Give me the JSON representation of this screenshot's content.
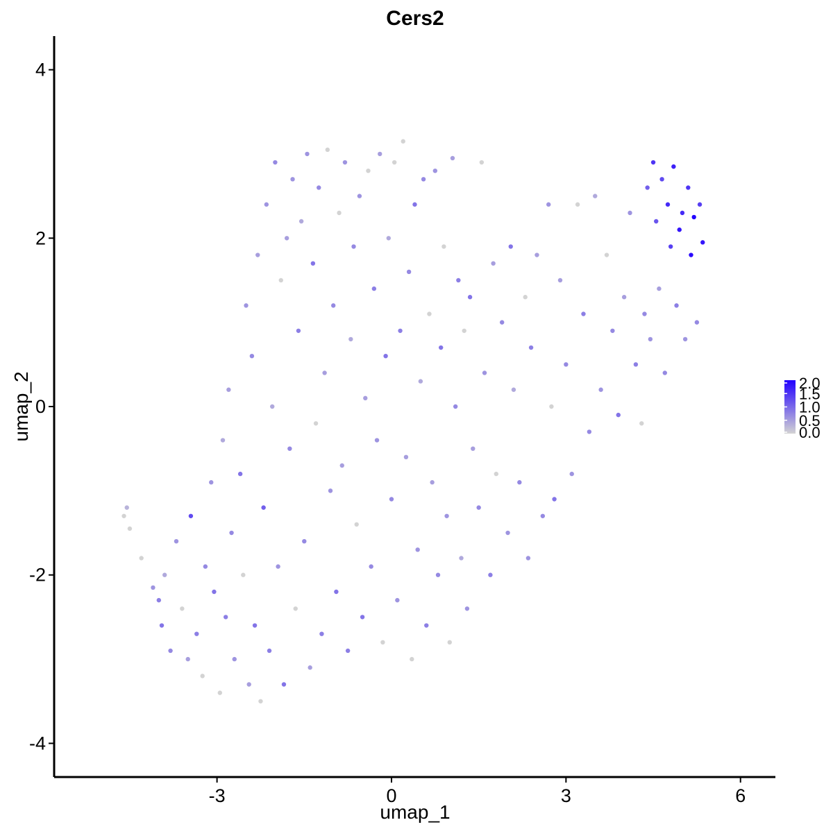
{
  "chart_data": {
    "type": "scatter",
    "title": "Cers2",
    "xlabel": "umap_1",
    "ylabel": "umap_2",
    "xlim": [
      -5.8,
      6.6
    ],
    "ylim": [
      -4.4,
      4.4
    ],
    "x_ticks": [
      -3,
      0,
      3,
      6
    ],
    "x_tick_labels": [
      "-3",
      "0",
      "3",
      "6"
    ],
    "y_ticks": [
      -4,
      -2,
      0,
      2,
      4
    ],
    "y_tick_labels": [
      "-4",
      "-2",
      "0",
      "2",
      "4"
    ],
    "grid": false,
    "legend_position": "right",
    "color_scale": {
      "low_color": "#d3d3d3",
      "high_color": "#2200ff",
      "min": 0.0,
      "max": 2.0,
      "breaks": [
        0.0,
        0.5,
        1.0,
        1.5,
        2.0
      ],
      "break_labels": [
        "0.0",
        "0.5",
        "1.0",
        "1.5",
        "2.0"
      ]
    },
    "points": [
      [
        -4.6,
        -1.3,
        0.0
      ],
      [
        -4.55,
        -1.2,
        0.3
      ],
      [
        -4.5,
        -1.45,
        0.0
      ],
      [
        -4.3,
        -1.8,
        0.0
      ],
      [
        -4.1,
        -2.15,
        0.6
      ],
      [
        -4.0,
        -2.3,
        0.8
      ],
      [
        -3.95,
        -2.6,
        0.9
      ],
      [
        -3.9,
        -2.0,
        0.4
      ],
      [
        -3.8,
        -2.9,
        0.7
      ],
      [
        -3.7,
        -1.6,
        0.6
      ],
      [
        -3.6,
        -2.4,
        0.0
      ],
      [
        -3.5,
        -3.0,
        0.5
      ],
      [
        -3.45,
        -1.3,
        1.3
      ],
      [
        -3.35,
        -2.7,
        0.8
      ],
      [
        -3.25,
        -3.2,
        0.0
      ],
      [
        -3.2,
        -1.9,
        0.7
      ],
      [
        -3.1,
        -0.9,
        0.6
      ],
      [
        -3.05,
        -2.2,
        0.9
      ],
      [
        -2.95,
        -3.4,
        0.0
      ],
      [
        -2.9,
        -0.4,
        0.4
      ],
      [
        -2.85,
        -2.5,
        0.8
      ],
      [
        -2.8,
        0.2,
        0.5
      ],
      [
        -2.75,
        -1.5,
        0.7
      ],
      [
        -2.7,
        -3.0,
        0.6
      ],
      [
        -2.6,
        -0.8,
        0.9
      ],
      [
        -2.55,
        -2.0,
        0.0
      ],
      [
        -2.5,
        1.2,
        0.6
      ],
      [
        -2.45,
        -3.3,
        0.5
      ],
      [
        -2.4,
        0.6,
        0.7
      ],
      [
        -2.35,
        -2.6,
        0.9
      ],
      [
        -2.3,
        1.8,
        0.5
      ],
      [
        -2.25,
        -3.5,
        0.0
      ],
      [
        -2.2,
        -1.2,
        1.1
      ],
      [
        -2.15,
        2.4,
        0.6
      ],
      [
        -2.1,
        -2.9,
        0.8
      ],
      [
        -2.05,
        0.0,
        0.4
      ],
      [
        -2.0,
        2.9,
        0.7
      ],
      [
        -1.95,
        -1.9,
        0.6
      ],
      [
        -1.9,
        1.5,
        0.0
      ],
      [
        -1.85,
        -3.3,
        0.9
      ],
      [
        -1.8,
        2.0,
        0.5
      ],
      [
        -1.75,
        -0.5,
        0.7
      ],
      [
        -1.7,
        2.7,
        0.6
      ],
      [
        -1.65,
        -2.4,
        0.0
      ],
      [
        -1.6,
        0.9,
        0.8
      ],
      [
        -1.55,
        2.2,
        0.4
      ],
      [
        -1.5,
        -1.6,
        0.7
      ],
      [
        -1.45,
        3.0,
        0.6
      ],
      [
        -1.4,
        -3.1,
        0.5
      ],
      [
        -1.35,
        1.7,
        0.9
      ],
      [
        -1.3,
        -0.2,
        0.0
      ],
      [
        -1.25,
        2.6,
        0.7
      ],
      [
        -1.2,
        -2.7,
        0.8
      ],
      [
        -1.15,
        0.4,
        0.5
      ],
      [
        -1.1,
        3.05,
        0.0
      ],
      [
        -1.05,
        -1.0,
        0.6
      ],
      [
        -1.0,
        1.2,
        0.7
      ],
      [
        -0.95,
        -2.2,
        0.9
      ],
      [
        -0.9,
        2.3,
        0.0
      ],
      [
        -0.85,
        -0.7,
        0.5
      ],
      [
        -0.8,
        2.9,
        0.6
      ],
      [
        -0.75,
        -2.9,
        0.8
      ],
      [
        -0.7,
        0.8,
        0.4
      ],
      [
        -0.65,
        1.9,
        0.7
      ],
      [
        -0.6,
        -1.4,
        0.0
      ],
      [
        -0.55,
        2.5,
        0.6
      ],
      [
        -0.5,
        -2.5,
        0.9
      ],
      [
        -0.45,
        0.1,
        0.5
      ],
      [
        -0.4,
        2.8,
        0.0
      ],
      [
        -0.35,
        -1.9,
        0.7
      ],
      [
        -0.3,
        1.4,
        0.8
      ],
      [
        -0.25,
        -0.4,
        0.6
      ],
      [
        -0.2,
        3.0,
        0.5
      ],
      [
        -0.15,
        -2.8,
        0.0
      ],
      [
        -0.1,
        0.6,
        0.9
      ],
      [
        -0.05,
        2.0,
        0.4
      ],
      [
        0.0,
        -1.1,
        0.7
      ],
      [
        0.05,
        2.9,
        0.0
      ],
      [
        0.1,
        -2.3,
        0.6
      ],
      [
        0.15,
        0.9,
        0.8
      ],
      [
        0.2,
        3.15,
        0.0
      ],
      [
        0.25,
        -0.6,
        0.5
      ],
      [
        0.3,
        1.6,
        0.7
      ],
      [
        0.35,
        -3.0,
        0.0
      ],
      [
        0.4,
        2.4,
        0.9
      ],
      [
        0.45,
        -1.7,
        0.6
      ],
      [
        0.5,
        0.3,
        0.4
      ],
      [
        0.55,
        2.7,
        0.7
      ],
      [
        0.6,
        -2.6,
        0.8
      ],
      [
        0.65,
        1.1,
        0.0
      ],
      [
        0.7,
        -0.9,
        0.5
      ],
      [
        0.75,
        2.8,
        0.6
      ],
      [
        0.8,
        -2.0,
        0.7
      ],
      [
        0.85,
        0.7,
        0.9
      ],
      [
        0.9,
        1.9,
        0.0
      ],
      [
        0.95,
        -1.3,
        0.6
      ],
      [
        1.0,
        -2.8,
        0.0
      ],
      [
        1.05,
        2.95,
        0.5
      ],
      [
        1.1,
        0.0,
        0.7
      ],
      [
        1.15,
        1.5,
        0.8
      ],
      [
        1.2,
        -1.8,
        0.4
      ],
      [
        1.25,
        0.9,
        0.0
      ],
      [
        1.3,
        -2.4,
        0.6
      ],
      [
        1.35,
        1.3,
        0.9
      ],
      [
        1.4,
        -0.5,
        0.5
      ],
      [
        1.5,
        -1.2,
        0.7
      ],
      [
        1.55,
        2.9,
        0.0
      ],
      [
        1.6,
        0.4,
        0.6
      ],
      [
        1.7,
        -2.0,
        0.8
      ],
      [
        1.75,
        1.7,
        0.5
      ],
      [
        1.8,
        -0.8,
        0.0
      ],
      [
        1.9,
        1.0,
        0.7
      ],
      [
        2.0,
        -1.5,
        0.6
      ],
      [
        2.05,
        1.9,
        0.9
      ],
      [
        2.1,
        0.2,
        0.4
      ],
      [
        2.2,
        -0.9,
        0.7
      ],
      [
        2.3,
        1.3,
        0.0
      ],
      [
        2.35,
        -1.8,
        0.6
      ],
      [
        2.4,
        0.7,
        0.8
      ],
      [
        2.5,
        1.8,
        0.5
      ],
      [
        2.6,
        -1.3,
        0.7
      ],
      [
        2.7,
        2.4,
        0.6
      ],
      [
        2.75,
        0.0,
        0.0
      ],
      [
        2.8,
        -1.1,
        0.9
      ],
      [
        2.9,
        1.5,
        0.5
      ],
      [
        3.0,
        0.5,
        0.7
      ],
      [
        3.1,
        -0.8,
        0.6
      ],
      [
        3.2,
        2.4,
        0.0
      ],
      [
        3.3,
        1.1,
        0.8
      ],
      [
        3.4,
        -0.3,
        0.7
      ],
      [
        3.5,
        2.5,
        0.4
      ],
      [
        3.6,
        0.2,
        0.6
      ],
      [
        3.7,
        1.8,
        0.0
      ],
      [
        3.8,
        0.9,
        0.7
      ],
      [
        3.9,
        -0.1,
        0.9
      ],
      [
        4.0,
        1.3,
        0.5
      ],
      [
        4.1,
        2.3,
        0.6
      ],
      [
        4.2,
        0.5,
        0.8
      ],
      [
        4.3,
        -0.2,
        0.0
      ],
      [
        4.35,
        1.1,
        0.7
      ],
      [
        4.4,
        2.6,
        1.1
      ],
      [
        4.45,
        0.8,
        0.6
      ],
      [
        4.5,
        2.9,
        1.5
      ],
      [
        4.55,
        2.2,
        1.2
      ],
      [
        4.6,
        1.4,
        0.5
      ],
      [
        4.65,
        2.7,
        1.3
      ],
      [
        4.7,
        0.4,
        0.7
      ],
      [
        4.75,
        2.4,
        1.6
      ],
      [
        4.8,
        1.9,
        1.4
      ],
      [
        4.85,
        2.85,
        1.7
      ],
      [
        4.9,
        1.2,
        0.8
      ],
      [
        4.95,
        2.1,
        1.8
      ],
      [
        5.0,
        2.3,
        1.6
      ],
      [
        5.05,
        0.8,
        0.6
      ],
      [
        5.1,
        2.6,
        1.5
      ],
      [
        5.15,
        1.8,
        1.9
      ],
      [
        5.2,
        2.25,
        2.0
      ],
      [
        5.25,
        1.0,
        0.7
      ],
      [
        5.3,
        2.4,
        1.4
      ],
      [
        5.35,
        1.95,
        1.8
      ]
    ]
  }
}
